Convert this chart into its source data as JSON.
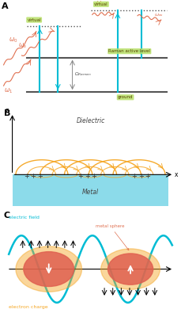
{
  "bg_color": "#ffffff",
  "cyan": "#00bcd4",
  "orange": "#f5a623",
  "coral": "#e07050",
  "green_box": "#b8e068",
  "dark_gray": "#555555",
  "panel_labels": [
    "A",
    "B",
    "C"
  ],
  "virtual_label": "virtual",
  "ground_label": "ground",
  "raman_active_label": "Raman active level",
  "dielectric_label": "Dielectric",
  "metal_label": "Metal",
  "electric_field_label": "electric field",
  "metal_sphere_label": "metal sphere",
  "electron_charge_label": "electron charge"
}
